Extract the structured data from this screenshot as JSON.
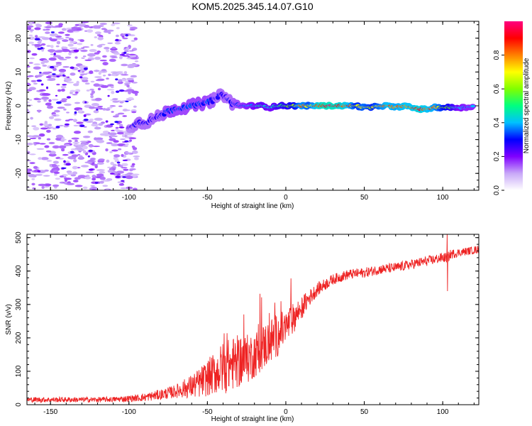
{
  "page": {
    "title": "KOM5.2025.345.14.07.G10"
  },
  "chart_data": [
    {
      "type": "heatmap",
      "title": "KOM5.2025.345.14.07.G10",
      "xlabel": "Height of straight line (km)",
      "ylabel": "Frequency (Hz)",
      "xlim": [
        -165,
        123
      ],
      "ylim": [
        -25,
        25
      ],
      "xticks": [
        -150,
        -100,
        -50,
        0,
        50,
        100
      ],
      "yticks": [
        -20,
        -10,
        0,
        10,
        20
      ],
      "colorbar": {
        "label": "Normalized spectral amplitude",
        "range": [
          0,
          1
        ],
        "ticks": [
          "0.0",
          "0.2",
          "0.4",
          "0.6",
          "0.8"
        ],
        "colors": [
          "#ffffff",
          "#c8a8f8",
          "#8000ff",
          "#0000ff",
          "#00c0ff",
          "#00ff80",
          "#80ff00",
          "#ffff00",
          "#ff8000",
          "#ff0000",
          "#ff0080"
        ]
      },
      "ridge": [
        {
          "x": -100,
          "f": -6.5,
          "amp": 0.25
        },
        {
          "x": -95,
          "f": -5,
          "amp": 0.3
        },
        {
          "x": -90,
          "f": -5,
          "amp": 0.3
        },
        {
          "x": -85,
          "f": -4,
          "amp": 0.3
        },
        {
          "x": -80,
          "f": -3,
          "amp": 0.3
        },
        {
          "x": -75,
          "f": -1.5,
          "amp": 0.35
        },
        {
          "x": -70,
          "f": -1,
          "amp": 0.35
        },
        {
          "x": -65,
          "f": -0.5,
          "amp": 0.35
        },
        {
          "x": -60,
          "f": 0,
          "amp": 0.35
        },
        {
          "x": -55,
          "f": 0.5,
          "amp": 0.35
        },
        {
          "x": -50,
          "f": 1,
          "amp": 0.35
        },
        {
          "x": -45,
          "f": 2,
          "amp": 0.3
        },
        {
          "x": -40,
          "f": 3.5,
          "amp": 0.3
        },
        {
          "x": -35,
          "f": 1,
          "amp": 0.3
        },
        {
          "x": -30,
          "f": 0,
          "amp": 0.35
        },
        {
          "x": -25,
          "f": 0,
          "amp": 0.4
        },
        {
          "x": -20,
          "f": 0,
          "amp": 0.45
        },
        {
          "x": -15,
          "f": 0,
          "amp": 0.5
        },
        {
          "x": -10,
          "f": -0.5,
          "amp": 0.45
        },
        {
          "x": -5,
          "f": 0,
          "amp": 0.55
        },
        {
          "x": 0,
          "f": 0,
          "amp": 0.6
        },
        {
          "x": 5,
          "f": 0,
          "amp": 0.65
        },
        {
          "x": 10,
          "f": 0,
          "amp": 0.85
        },
        {
          "x": 15,
          "f": 0,
          "amp": 0.75
        },
        {
          "x": 20,
          "f": 0,
          "amp": 0.95
        },
        {
          "x": 25,
          "f": 0,
          "amp": 1.0
        },
        {
          "x": 30,
          "f": 0,
          "amp": 1.0
        },
        {
          "x": 35,
          "f": 0,
          "amp": 0.95
        },
        {
          "x": 40,
          "f": 0,
          "amp": 0.9
        },
        {
          "x": 45,
          "f": 0,
          "amp": 0.7
        },
        {
          "x": 50,
          "f": -0.5,
          "amp": 0.8
        },
        {
          "x": 55,
          "f": -0.5,
          "amp": 0.7
        },
        {
          "x": 60,
          "f": 0,
          "amp": 0.8
        },
        {
          "x": 65,
          "f": 0,
          "amp": 0.9
        },
        {
          "x": 70,
          "f": -0.5,
          "amp": 0.85
        },
        {
          "x": 75,
          "f": 0,
          "amp": 0.9
        },
        {
          "x": 80,
          "f": -0.5,
          "amp": 0.9
        },
        {
          "x": 85,
          "f": -1,
          "amp": 0.95
        },
        {
          "x": 90,
          "f": -1,
          "amp": 0.9
        },
        {
          "x": 95,
          "f": -0.5,
          "amp": 0.85
        },
        {
          "x": 100,
          "f": -0.5,
          "amp": 0.7
        },
        {
          "x": 105,
          "f": -0.5,
          "amp": 0.6
        },
        {
          "x": 110,
          "f": -0.5,
          "amp": 0.45
        },
        {
          "x": 115,
          "f": -0.5,
          "amp": 0.4
        },
        {
          "x": 120,
          "f": 0,
          "amp": 0.4
        }
      ]
    },
    {
      "type": "line",
      "xlabel": "Height of straight line (km)",
      "ylabel": "SNR (v/v)",
      "xlim": [
        -165,
        123
      ],
      "ylim": [
        0,
        510
      ],
      "xticks": [
        -150,
        -100,
        -50,
        0,
        50,
        100
      ],
      "yticks": [
        0,
        100,
        200,
        300,
        400,
        500
      ],
      "color": "#ee2222",
      "series": [
        {
          "name": "SNR",
          "x": [
            -165,
            -150,
            -140,
            -130,
            -120,
            -110,
            -100,
            -95,
            -90,
            -85,
            -80,
            -75,
            -70,
            -65,
            -60,
            -55,
            -50,
            -45,
            -40,
            -35,
            -30,
            -25,
            -20,
            -15,
            -10,
            -5,
            0,
            5,
            10,
            15,
            20,
            25,
            30,
            40,
            50,
            60,
            70,
            80,
            90,
            100,
            103,
            105,
            110,
            123
          ],
          "mean": [
            15,
            15,
            15,
            15,
            15,
            16,
            18,
            20,
            22,
            26,
            30,
            35,
            40,
            48,
            55,
            65,
            80,
            95,
            110,
            120,
            130,
            135,
            150,
            170,
            190,
            210,
            230,
            260,
            290,
            320,
            345,
            360,
            375,
            390,
            395,
            405,
            410,
            420,
            430,
            440,
            440,
            450,
            455,
            465
          ],
          "noise": [
            8,
            8,
            8,
            8,
            8,
            8,
            10,
            10,
            12,
            14,
            16,
            18,
            20,
            28,
            36,
            45,
            55,
            65,
            80,
            80,
            80,
            75,
            70,
            70,
            70,
            65,
            55,
            45,
            35,
            25,
            20,
            18,
            16,
            15,
            15,
            15,
            15,
            15,
            15,
            15,
            15,
            15,
            12,
            12
          ]
        }
      ]
    }
  ]
}
